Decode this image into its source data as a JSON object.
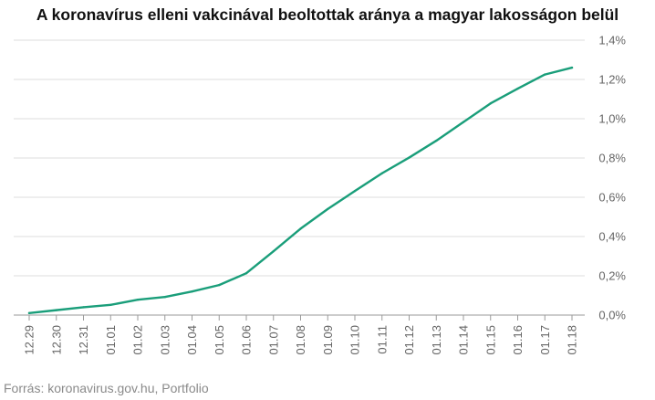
{
  "chart_data": {
    "type": "line",
    "title": "A koronavírus elleni vakcinával beoltottak aránya a magyar lakosságon belül",
    "xlabel": "",
    "ylabel": "",
    "categories": [
      "12.29",
      "12.30",
      "12.31",
      "01.01",
      "01.02",
      "01.03",
      "01.04",
      "01.05",
      "01.06",
      "01.07",
      "01.08",
      "01.09",
      "01.10",
      "01.11",
      "01.12",
      "01.13",
      "01.14",
      "01.15",
      "01.16",
      "01.17",
      "01.18"
    ],
    "y_ticks": [
      "0,0%",
      "0,2%",
      "0,4%",
      "0,6%",
      "0,8%",
      "1,0%",
      "1,2%",
      "1,4%"
    ],
    "ylim": [
      0,
      1.4
    ],
    "grid": true,
    "y_axis_side": "right",
    "legend": "none",
    "series": [
      {
        "color": "#1a9e7a",
        "values": [
          0.01,
          0.025,
          0.04,
          0.052,
          0.078,
          0.092,
          0.12,
          0.153,
          0.213,
          0.325,
          0.44,
          0.54,
          0.632,
          0.722,
          0.802,
          0.888,
          0.983,
          1.078,
          1.153,
          1.225,
          1.26
        ]
      }
    ]
  },
  "footer": {
    "source": "Forrás: koronavirus.gov.hu, Portfolio"
  }
}
